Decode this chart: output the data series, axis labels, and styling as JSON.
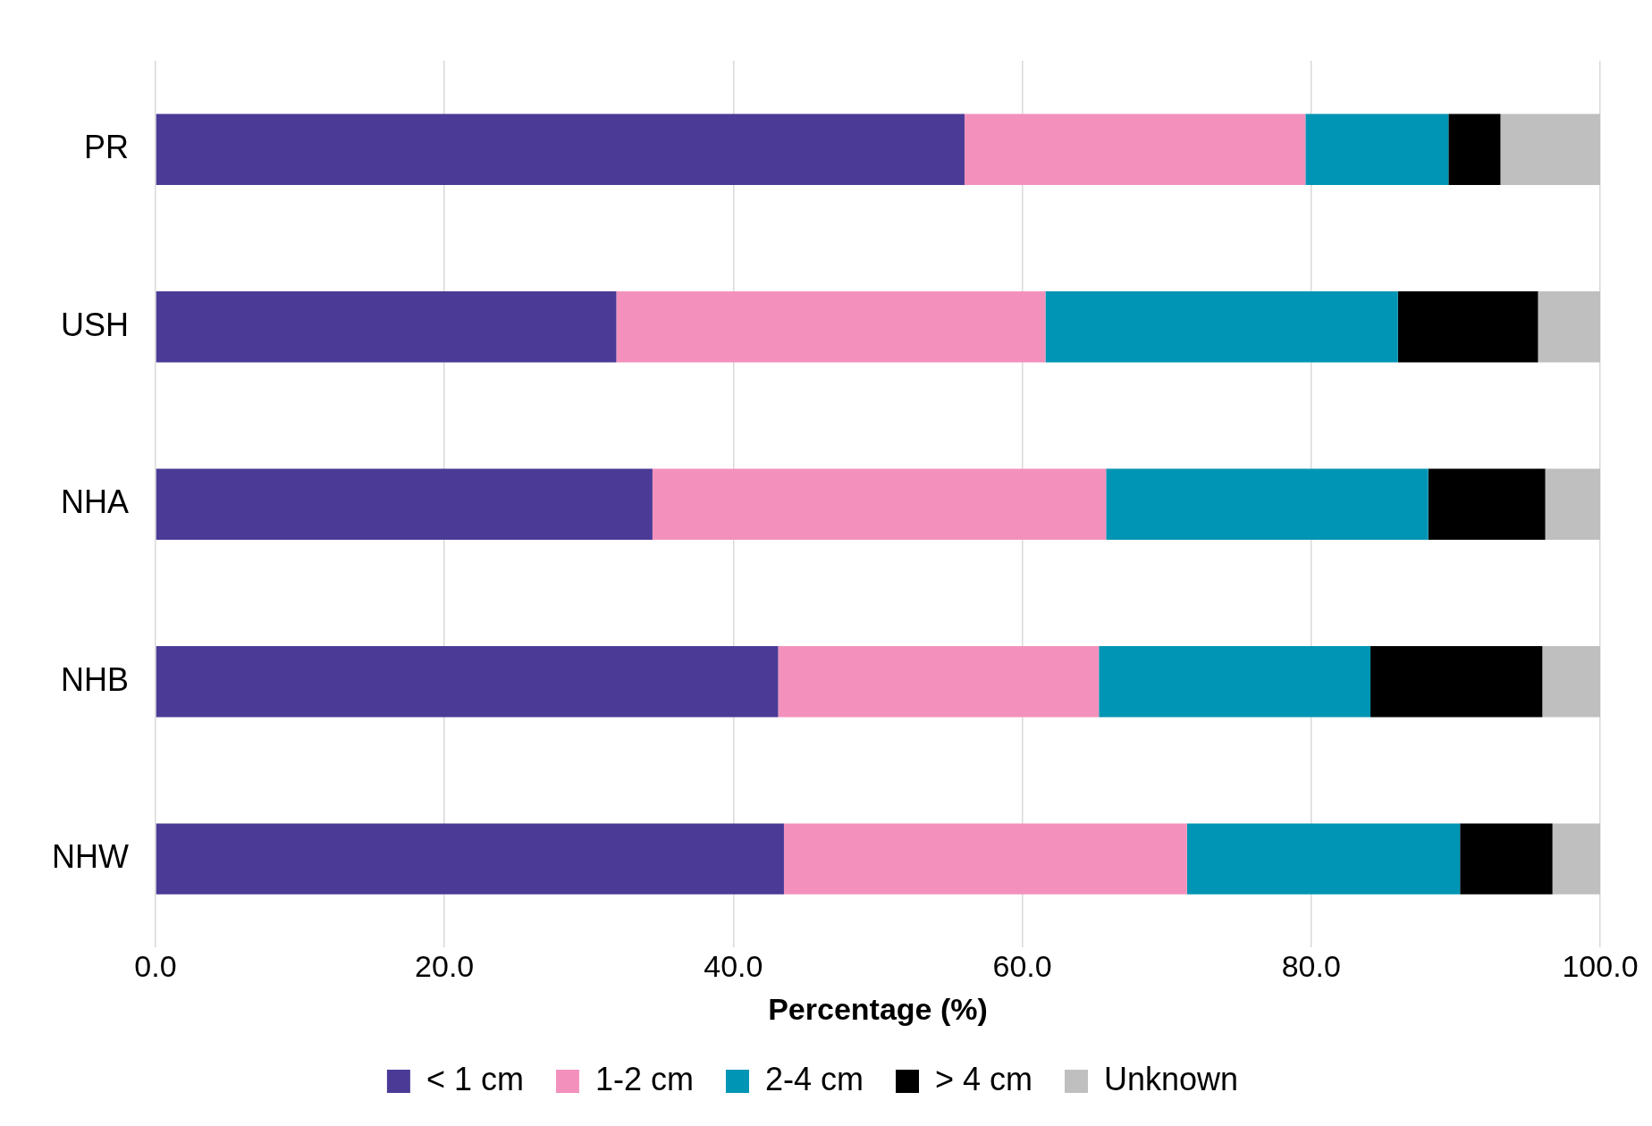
{
  "chart_data": {
    "type": "bar",
    "orientation": "horizontal",
    "stacked": true,
    "xlabel": "Percentage (%)",
    "categories": [
      "PR",
      "USH",
      "NHA",
      "NHB",
      "NHW"
    ],
    "series": [
      {
        "name": "< 1 cm",
        "color": "#4b3a96",
        "values": [
          56.0,
          31.9,
          34.4,
          43.1,
          43.5
        ]
      },
      {
        "name": "1-2 cm",
        "color": "#f391bc",
        "values": [
          23.6,
          29.7,
          31.4,
          22.2,
          27.9
        ]
      },
      {
        "name": "2-4 cm",
        "color": "#0095b4",
        "values": [
          9.9,
          24.4,
          22.3,
          18.8,
          18.9
        ]
      },
      {
        "name": "> 4 cm",
        "color": "#000000",
        "values": [
          3.6,
          9.7,
          8.1,
          11.9,
          6.4
        ]
      },
      {
        "name": "Unknown",
        "color": "#bfbfbf",
        "values": [
          6.9,
          4.3,
          3.8,
          4.0,
          3.3
        ]
      }
    ],
    "xlim": [
      0,
      100
    ],
    "xticks": [
      {
        "value": 0,
        "label": "0.0"
      },
      {
        "value": 20,
        "label": "20.0"
      },
      {
        "value": 40,
        "label": "40.0"
      },
      {
        "value": 60,
        "label": "60.0"
      },
      {
        "value": 80,
        "label": "80.0"
      },
      {
        "value": 100,
        "label": "100.0"
      }
    ],
    "grid": "x",
    "legend": "bottom"
  }
}
